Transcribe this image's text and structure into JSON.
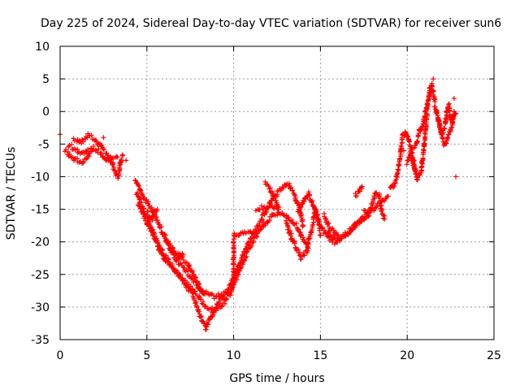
{
  "chart_data": {
    "type": "scatter",
    "title": "Day 225 of 2024, Sidereal Day-to-day VTEC variation (SDTVAR) for receiver sun6",
    "xlabel": "GPS time / hours",
    "ylabel": "SDTVAR / TECUs",
    "xlim": [
      0,
      25
    ],
    "ylim": [
      -35,
      10
    ],
    "xticks": [
      0,
      5,
      10,
      15,
      20,
      25
    ],
    "yticks": [
      10,
      5,
      0,
      -5,
      -10,
      -15,
      -20,
      -25,
      -30,
      -35
    ],
    "grid": true,
    "marker": "plus",
    "color": "#ff0000",
    "series": [
      {
        "name": "sun6",
        "traces": [
          [
            [
              0.8,
              -4.2
            ],
            [
              1.2,
              -4.8
            ],
            [
              1.6,
              -3.6
            ],
            [
              2.0,
              -4.2
            ],
            [
              2.4,
              -5.5
            ],
            [
              2.7,
              -6.5
            ],
            [
              3.0,
              -8.0
            ],
            [
              3.2,
              -9.5
            ],
            [
              3.35,
              -10.0
            ],
            [
              3.5,
              -7.5
            ],
            [
              3.6,
              -6.8
            ]
          ],
          [
            [
              0.3,
              -6.0
            ],
            [
              0.6,
              -7.0
            ],
            [
              0.9,
              -7.5
            ],
            [
              1.3,
              -7.8
            ],
            [
              1.6,
              -7.0
            ],
            [
              1.9,
              -5.5
            ],
            [
              2.3,
              -6.2
            ],
            [
              2.7,
              -7.5
            ],
            [
              3.0,
              -7.2
            ],
            [
              3.3,
              -7.0
            ]
          ],
          [
            [
              0.5,
              -5.2
            ],
            [
              0.9,
              -5.8
            ],
            [
              1.3,
              -6.5
            ],
            [
              1.6,
              -5.8
            ]
          ],
          [
            [
              4.3,
              -10.5
            ],
            [
              4.6,
              -12.0
            ],
            [
              4.9,
              -13.5
            ],
            [
              5.3,
              -15.0
            ],
            [
              5.7,
              -17.5
            ],
            [
              6.1,
              -19.5
            ],
            [
              6.6,
              -21.5
            ],
            [
              7.0,
              -22.5
            ],
            [
              7.4,
              -23.5
            ],
            [
              7.7,
              -25.0
            ],
            [
              8.0,
              -26.5
            ],
            [
              8.3,
              -28.0
            ]
          ],
          [
            [
              4.4,
              -12.5
            ],
            [
              4.8,
              -15.0
            ],
            [
              5.2,
              -17.5
            ],
            [
              5.6,
              -20.0
            ],
            [
              6.0,
              -22.0
            ],
            [
              6.4,
              -23.5
            ],
            [
              6.8,
              -25.0
            ],
            [
              7.2,
              -26.5
            ],
            [
              7.6,
              -28.0
            ],
            [
              7.9,
              -30.0
            ],
            [
              8.2,
              -32.0
            ],
            [
              8.4,
              -33.3
            ],
            [
              8.6,
              -32.0
            ],
            [
              8.9,
              -30.5
            ],
            [
              9.2,
              -29.0
            ],
            [
              9.6,
              -27.5
            ],
            [
              10.0,
              -25.5
            ],
            [
              10.4,
              -23.0
            ],
            [
              10.8,
              -20.5
            ],
            [
              11.2,
              -18.5
            ],
            [
              11.6,
              -16.5
            ],
            [
              12.0,
              -14.5
            ],
            [
              12.3,
              -13.0
            ],
            [
              12.7,
              -12.0
            ],
            [
              13.1,
              -11.0
            ],
            [
              13.5,
              -12.5
            ],
            [
              13.8,
              -15.0
            ],
            [
              14.0,
              -17.5
            ]
          ],
          [
            [
              4.5,
              -14.0
            ],
            [
              4.9,
              -16.5
            ],
            [
              5.3,
              -18.5
            ],
            [
              5.7,
              -21.0
            ],
            [
              6.1,
              -23.0
            ],
            [
              6.6,
              -24.5
            ],
            [
              7.0,
              -25.5
            ],
            [
              7.5,
              -27.0
            ],
            [
              8.0,
              -28.5
            ],
            [
              8.4,
              -30.0
            ],
            [
              8.8,
              -30.5
            ],
            [
              9.2,
              -30.0
            ],
            [
              9.6,
              -28.5
            ],
            [
              10.0,
              -26.5
            ],
            [
              10.4,
              -24.0
            ],
            [
              10.8,
              -21.5
            ],
            [
              11.2,
              -19.5
            ],
            [
              11.7,
              -17.5
            ],
            [
              12.2,
              -16.0
            ],
            [
              12.7,
              -15.5
            ],
            [
              13.2,
              -16.5
            ],
            [
              13.6,
              -17.5
            ],
            [
              14.0,
              -19.5
            ],
            [
              14.3,
              -21.0
            ]
          ],
          [
            [
              5.0,
              -15.5
            ],
            [
              5.3,
              -16.5
            ],
            [
              5.6,
              -15.0
            ]
          ],
          [
            [
              6.0,
              -19.0
            ],
            [
              6.4,
              -21.5
            ],
            [
              6.8,
              -22.5
            ],
            [
              7.1,
              -22.0
            ]
          ],
          [
            [
              6.5,
              -22.0
            ],
            [
              6.9,
              -23.5
            ],
            [
              7.3,
              -24.5
            ],
            [
              7.7,
              -26.0
            ],
            [
              8.1,
              -27.5
            ],
            [
              8.5,
              -28.0
            ],
            [
              8.9,
              -28.5
            ],
            [
              9.3,
              -28.0
            ]
          ],
          [
            [
              9.8,
              -28.0
            ],
            [
              10.0,
              -26.0
            ],
            [
              10.0,
              -24.0
            ],
            [
              10.0,
              -22.0
            ],
            [
              10.0,
              -20.5
            ],
            [
              10.0,
              -19.0
            ],
            [
              10.4,
              -18.6
            ],
            [
              10.8,
              -18.8
            ],
            [
              11.1,
              -18.6
            ]
          ],
          [
            [
              11.3,
              -15.0
            ],
            [
              11.6,
              -14.8
            ],
            [
              12.0,
              -14.6
            ],
            [
              12.5,
              -14.9
            ]
          ],
          [
            [
              11.8,
              -11.0
            ],
            [
              12.1,
              -12.0
            ],
            [
              12.4,
              -13.5
            ],
            [
              12.6,
              -15.0
            ]
          ],
          [
            [
              13.0,
              -17.0
            ],
            [
              13.3,
              -19.0
            ],
            [
              13.6,
              -21.0
            ],
            [
              13.9,
              -22.5
            ],
            [
              14.2,
              -21.5
            ],
            [
              14.4,
              -19.0
            ],
            [
              14.6,
              -17.0
            ],
            [
              14.7,
              -15.0
            ],
            [
              14.9,
              -17.0
            ],
            [
              15.0,
              -19.0
            ]
          ],
          [
            [
              13.7,
              -15.5
            ],
            [
              14.0,
              -14.0
            ],
            [
              14.3,
              -12.5
            ],
            [
              14.6,
              -14.5
            ],
            [
              14.9,
              -17.0
            ],
            [
              15.2,
              -18.5
            ],
            [
              15.5,
              -19.5
            ],
            [
              15.8,
              -20.0
            ],
            [
              16.2,
              -19.5
            ],
            [
              16.6,
              -18.5
            ],
            [
              17.0,
              -17.5
            ],
            [
              17.4,
              -16.5
            ],
            [
              17.8,
              -16.0
            ]
          ],
          [
            [
              15.2,
              -16.0
            ],
            [
              15.5,
              -17.5
            ],
            [
              15.8,
              -18.5
            ],
            [
              16.0,
              -19.0
            ]
          ],
          [
            [
              15.4,
              -18.5
            ],
            [
              15.8,
              -19.5
            ],
            [
              16.3,
              -19.5
            ],
            [
              16.8,
              -18.0
            ],
            [
              17.2,
              -16.8
            ],
            [
              17.6,
              -16.0
            ],
            [
              18.0,
              -15.0
            ],
            [
              18.5,
              -14.0
            ],
            [
              18.9,
              -13.0
            ]
          ],
          [
            [
              17.5,
              -15.5
            ],
            [
              17.8,
              -15.5
            ],
            [
              18.0,
              -14.0
            ],
            [
              18.2,
              -12.5
            ],
            [
              18.4,
              -13.0
            ],
            [
              18.5,
              -15.0
            ],
            [
              18.7,
              -16.5
            ]
          ],
          [
            [
              17.0,
              -13.0
            ],
            [
              17.2,
              -12.5
            ],
            [
              17.4,
              -11.5
            ]
          ],
          [
            [
              19.0,
              -12.0
            ],
            [
              19.2,
              -11.5
            ],
            [
              19.4,
              -10.0
            ],
            [
              19.6,
              -7.0
            ],
            [
              19.7,
              -4.0
            ],
            [
              19.9,
              -3.0
            ],
            [
              20.1,
              -4.5
            ],
            [
              20.3,
              -7.0
            ],
            [
              20.4,
              -8.5
            ],
            [
              20.6,
              -10.0
            ],
            [
              20.8,
              -9.5
            ],
            [
              20.9,
              -7.0
            ],
            [
              21.0,
              -4.5
            ],
            [
              21.1,
              -1.5
            ],
            [
              21.2,
              1.5
            ],
            [
              21.3,
              3.5
            ],
            [
              21.4,
              4.0
            ],
            [
              21.5,
              3.0
            ],
            [
              21.6,
              1.5
            ]
          ],
          [
            [
              20.2,
              -6.0
            ],
            [
              20.5,
              -5.0
            ],
            [
              20.7,
              -3.0
            ],
            [
              20.9,
              -2.0
            ],
            [
              21.1,
              0.5
            ],
            [
              21.3,
              2.5
            ],
            [
              21.4,
              3.5
            ]
          ],
          [
            [
              20.0,
              -8.0
            ],
            [
              20.2,
              -6.5
            ],
            [
              20.5,
              -9.5
            ],
            [
              20.6,
              -10.5
            ]
          ],
          [
            [
              21.6,
              1.0
            ],
            [
              21.8,
              -1.5
            ],
            [
              22.0,
              -3.5
            ],
            [
              22.2,
              -2.0
            ],
            [
              22.3,
              0.5
            ],
            [
              22.4,
              1.0
            ],
            [
              22.5,
              -1.5
            ],
            [
              22.7,
              -0.5
            ],
            [
              22.8,
              -0.3
            ]
          ],
          [
            [
              21.8,
              -1.0
            ],
            [
              21.9,
              -2.5
            ],
            [
              22.0,
              -4.0
            ],
            [
              22.2,
              -5.0
            ],
            [
              22.3,
              -4.0
            ],
            [
              22.5,
              -3.0
            ],
            [
              22.6,
              -2.0
            ],
            [
              22.7,
              0.0
            ]
          ]
        ],
        "singles": [
          [
            0.0,
            -3.5
          ],
          [
            2.5,
            -4.0
          ],
          [
            3.8,
            -7.5
          ],
          [
            9.5,
            -29.5
          ],
          [
            12.5,
            -13.0
          ],
          [
            21.5,
            5.0
          ],
          [
            22.1,
            -5.2
          ],
          [
            22.4,
            -3.5
          ],
          [
            22.7,
            2.0
          ],
          [
            22.8,
            -10.0
          ],
          [
            19.8,
            -6.0
          ],
          [
            20.4,
            -7.5
          ]
        ]
      }
    ]
  }
}
